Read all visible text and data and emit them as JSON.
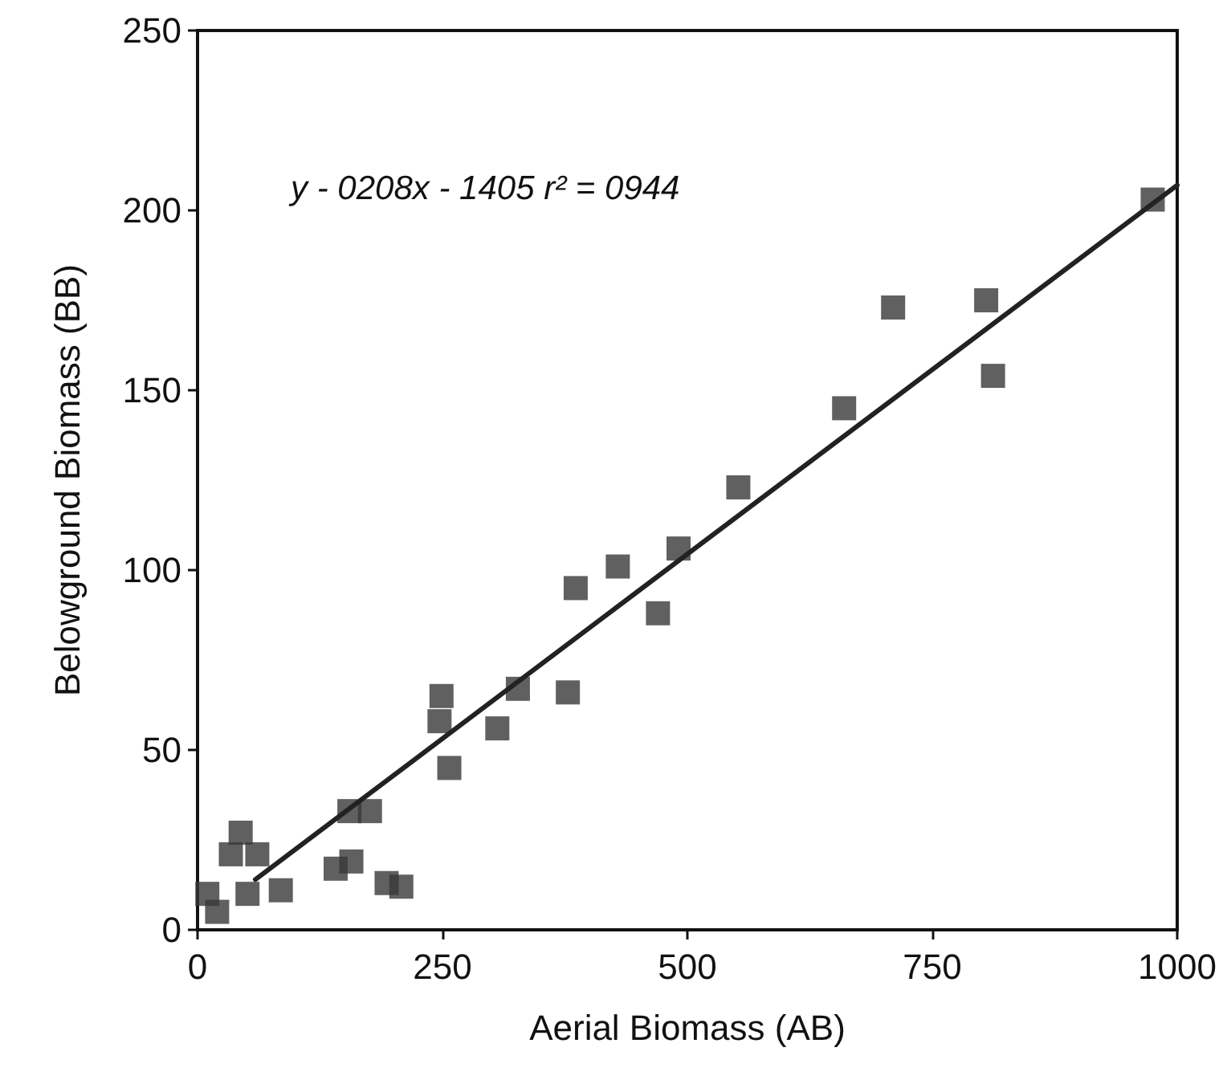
{
  "chart_data": {
    "type": "scatter",
    "xlabel": "Aerial Biomass (AB)",
    "ylabel": "Belowground Biomass (BB)",
    "xlim": [
      0,
      1000
    ],
    "xticks": [
      0,
      250,
      500,
      750,
      1000
    ],
    "ylim": [
      0,
      250
    ],
    "yticks": [
      0,
      50,
      100,
      150,
      200,
      250
    ],
    "grid": false,
    "annotations": [
      "y - 0208x - 1405 r² = 0944"
    ],
    "series": [
      {
        "marker": "square",
        "color": "#383838",
        "x": [
          10,
          20,
          51,
          85,
          44,
          34,
          61,
          141,
          157,
          193,
          208,
          155,
          176,
          249,
          247,
          257,
          306,
          327,
          378,
          470,
          386,
          429,
          491,
          552,
          660,
          710,
          805,
          812,
          975
        ],
        "values": [
          10,
          5,
          10,
          11,
          27,
          21,
          21,
          17,
          19,
          13,
          12,
          33,
          33,
          65,
          58,
          45,
          56,
          67,
          66,
          88,
          95,
          101,
          106,
          123,
          145,
          173,
          175,
          154,
          203
        ]
      },
      {
        "type": "line",
        "marker": "none",
        "color": "#222222",
        "line_style": "solid",
        "x": [
          59,
          1000
        ],
        "values": [
          14,
          207
        ]
      }
    ]
  }
}
